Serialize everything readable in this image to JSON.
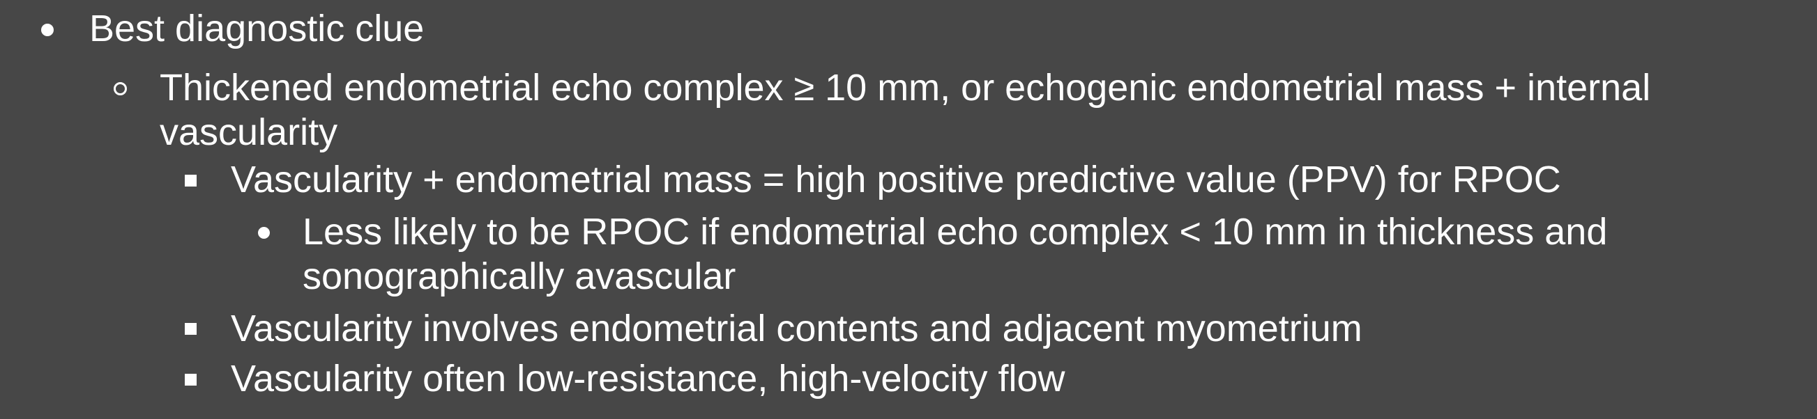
{
  "bullets": {
    "l1_0": "Best diagnostic clue",
    "l2_0_line1": "Thickened endometrial echo complex ≥ 10 mm, or echogenic endometrial mass + internal",
    "l2_0_line2": "vascularity",
    "l3_0": "Vascularity + endometrial mass = high positive predictive value (PPV) for RPOC",
    "l4_0_line1": "Less likely to be RPOC if endometrial echo complex < 10 mm in thickness and",
    "l4_0_line2": "sonographically avascular",
    "l3_1": "Vascularity involves endometrial contents and adjacent myometrium",
    "l3_2": "Vascularity often low-resistance, high-velocity flow"
  },
  "icons": {
    "level1": "filled-disc-bullet",
    "level2": "hollow-circle-bullet",
    "level3": "filled-square-bullet",
    "level4": "filled-disc-bullet"
  },
  "colors": {
    "background": "#474747",
    "text": "#ffffff"
  }
}
